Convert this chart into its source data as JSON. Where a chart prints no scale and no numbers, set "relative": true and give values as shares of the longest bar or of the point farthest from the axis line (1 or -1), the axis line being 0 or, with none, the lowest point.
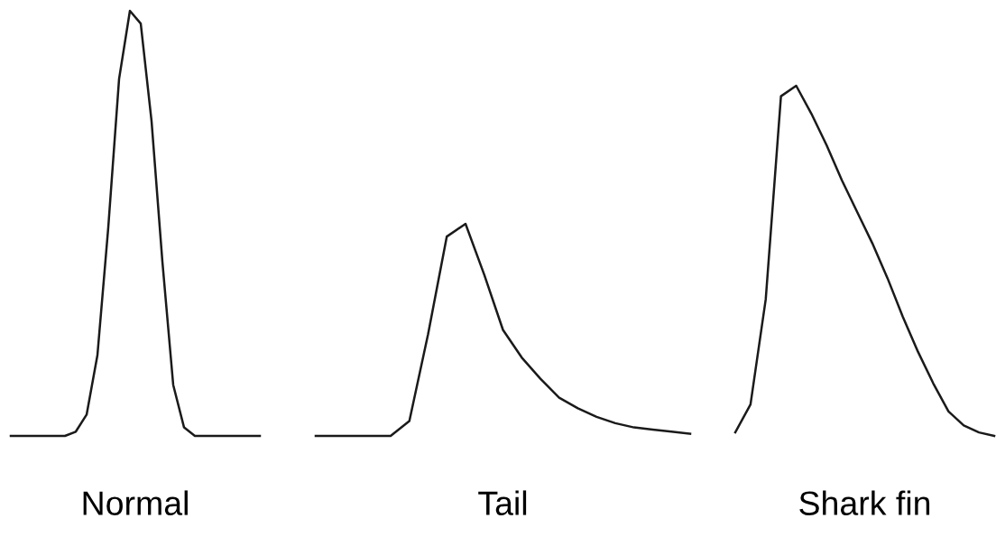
{
  "chart_data": [
    {
      "type": "line",
      "relative": true,
      "xlabel": "Normal",
      "categories": [
        null,
        null,
        null,
        null,
        null,
        null,
        null,
        null,
        null,
        null,
        null,
        null,
        null,
        null,
        null,
        null,
        null,
        null,
        null,
        null,
        null,
        null,
        null,
        null
      ],
      "series": [
        {
          "color": "#1a1a1a",
          "values": [
            0,
            0,
            0,
            0,
            0,
            0,
            0.01,
            0.05,
            0.19,
            0.49,
            0.84,
            1,
            0.97,
            0.74,
            0.41,
            0.12,
            0.02,
            0,
            0,
            0,
            0,
            0,
            0,
            0
          ]
        }
      ]
    },
    {
      "type": "line",
      "relative": true,
      "xlabel": "Tail",
      "categories": [
        null,
        null,
        null,
        null,
        null,
        null,
        null,
        null,
        null,
        null,
        null,
        null,
        null,
        null,
        null,
        null,
        null,
        null,
        null,
        null,
        null
      ],
      "series": [
        {
          "color": "#1a1a1a",
          "values": [
            0,
            0,
            0,
            0,
            0,
            0.07,
            0.48,
            0.94,
            1,
            0.76,
            0.5,
            0.37,
            0.27,
            0.18,
            0.13,
            0.09,
            0.06,
            0.04,
            0.03,
            0.02,
            0.01
          ]
        }
      ]
    },
    {
      "type": "line",
      "relative": true,
      "xlabel": "Shark fin",
      "categories": [
        null,
        null,
        null,
        null,
        null,
        null,
        null,
        null,
        null,
        null,
        null,
        null,
        null,
        null,
        null,
        null,
        null,
        null
      ],
      "series": [
        {
          "color": "#1a1a1a",
          "values": [
            0.01,
            0.09,
            0.39,
            0.97,
            1,
            0.92,
            0.83,
            0.73,
            0.64,
            0.55,
            0.45,
            0.34,
            0.24,
            0.15,
            0.07,
            0.03,
            0.01,
            0
          ]
        }
      ]
    }
  ]
}
